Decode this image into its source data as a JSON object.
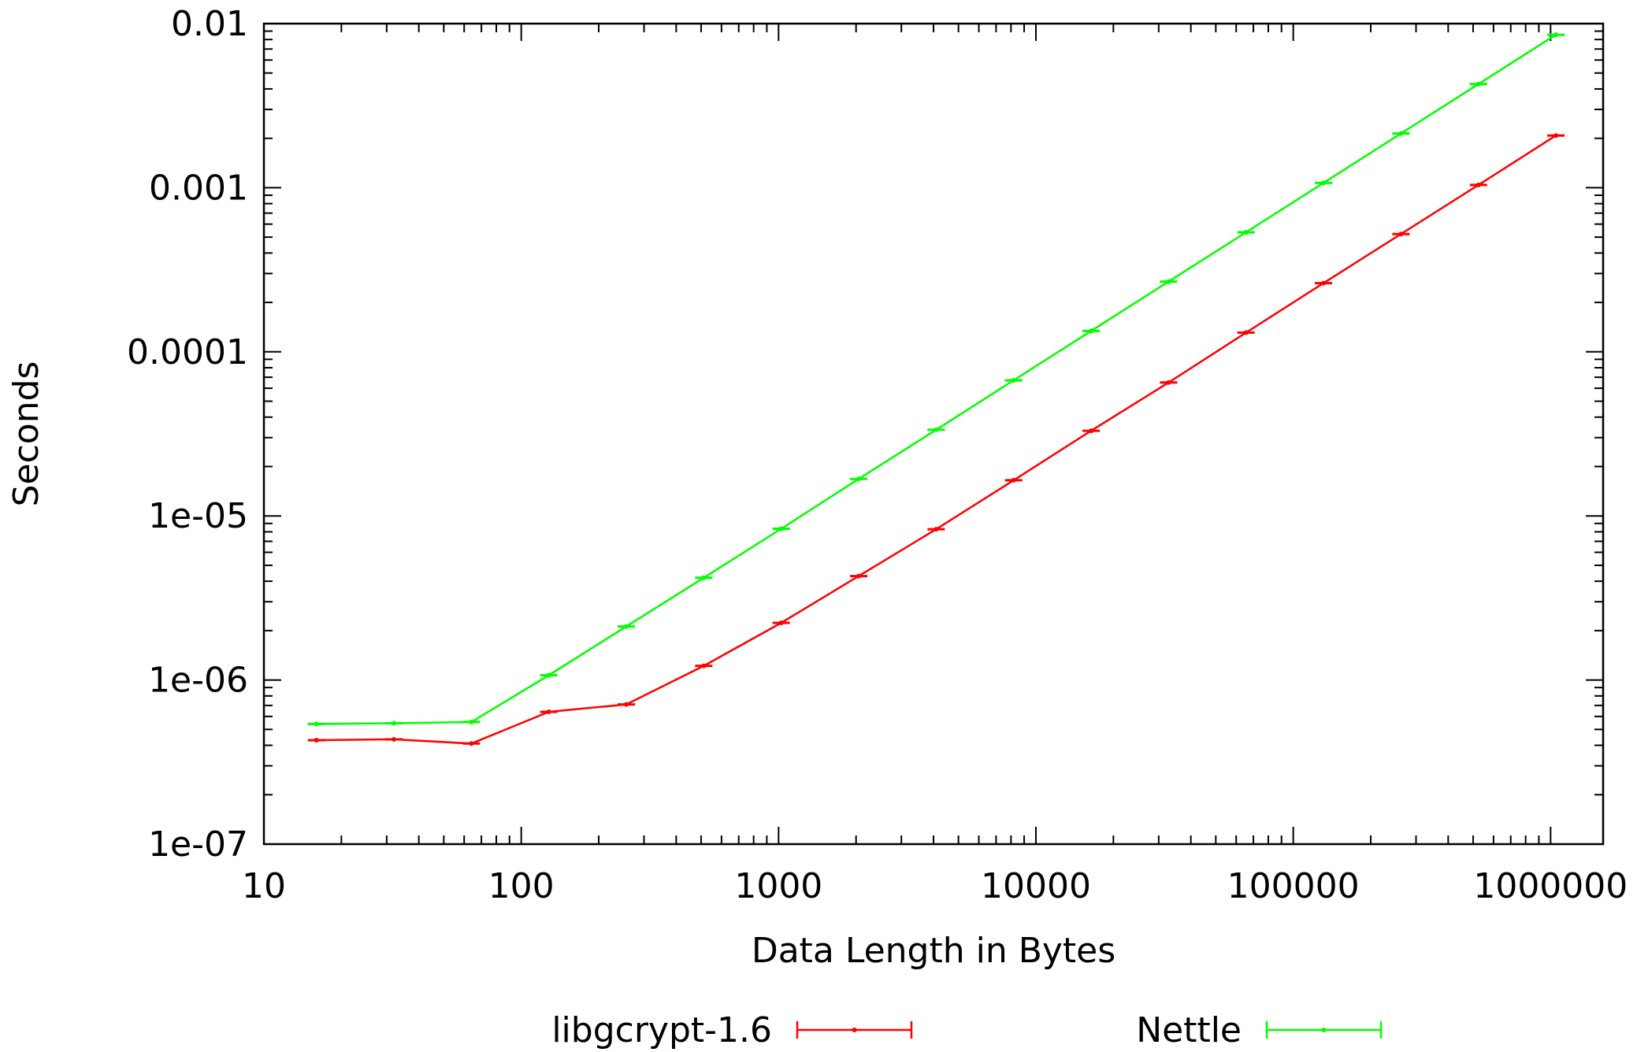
{
  "chart_data": {
    "type": "line",
    "xlabel": "Data Length in Bytes",
    "ylabel": "Seconds",
    "xscale": "log",
    "yscale": "log",
    "xlim": [
      10,
      1600000
    ],
    "ylim": [
      1e-07,
      0.01
    ],
    "x_ticks": [
      {
        "value": 10,
        "label": "10"
      },
      {
        "value": 100,
        "label": "100"
      },
      {
        "value": 1000,
        "label": "1000"
      },
      {
        "value": 10000,
        "label": "10000"
      },
      {
        "value": 100000,
        "label": "100000"
      },
      {
        "value": 1000000,
        "label": "1000000"
      }
    ],
    "y_ticks": [
      {
        "value": 1e-07,
        "label": "1e-07"
      },
      {
        "value": 1e-06,
        "label": "1e-06"
      },
      {
        "value": 1e-05,
        "label": "1e-05"
      },
      {
        "value": 0.0001,
        "label": "0.0001"
      },
      {
        "value": 0.001,
        "label": "0.001"
      },
      {
        "value": 0.01,
        "label": "0.01"
      }
    ],
    "grid": false,
    "legend_position": "bottom",
    "x": [
      16,
      32,
      64,
      128,
      256,
      512,
      1024,
      2048,
      4096,
      8192,
      16384,
      32768,
      65536,
      131072,
      262144,
      524288,
      1048576
    ],
    "series": [
      {
        "name": "libgcrypt-1.6",
        "color": "#ff0000",
        "values": [
          4.3e-07,
          4.35e-07,
          4.1e-07,
          6.4e-07,
          7.1e-07,
          1.22e-06,
          2.23e-06,
          4.3e-06,
          8.3e-06,
          1.65e-05,
          3.3e-05,
          6.5e-05,
          0.000131,
          0.000262,
          0.000522,
          0.00104,
          0.00208
        ]
      },
      {
        "name": "Nettle",
        "color": "#00ff00",
        "values": [
          5.4e-07,
          5.45e-07,
          5.55e-07,
          1.07e-06,
          2.12e-06,
          4.2e-06,
          8.35e-06,
          1.68e-05,
          3.35e-05,
          6.7e-05,
          0.000134,
          0.000268,
          0.000535,
          0.00107,
          0.00214,
          0.00428,
          0.00856
        ]
      }
    ]
  }
}
